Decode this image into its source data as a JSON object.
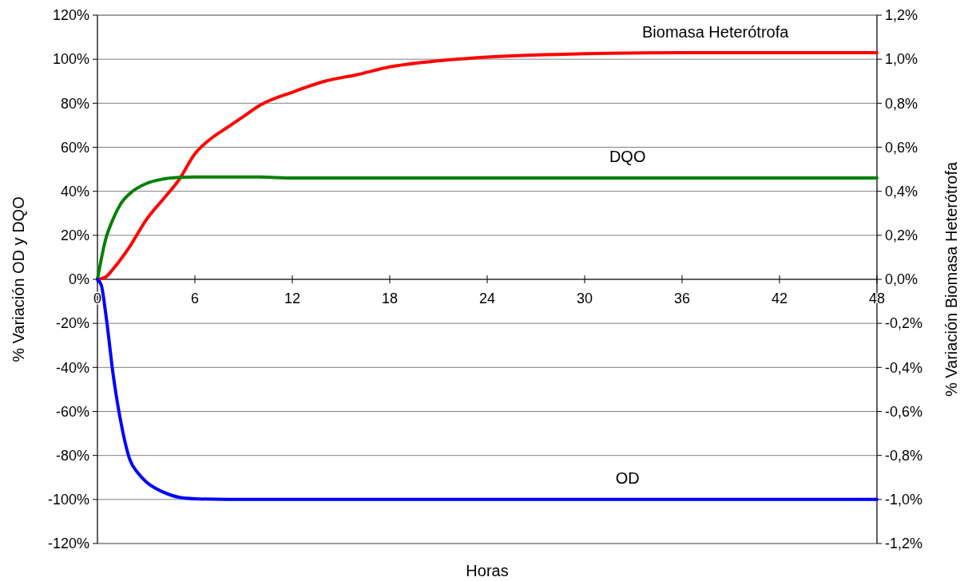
{
  "chart_data": {
    "type": "line",
    "xlabel": "Horas",
    "ylabel": "% Variación OD y DQO",
    "y2label": "% Variación Biomasa Heterótrofa",
    "xlim": [
      0,
      48
    ],
    "xticks": [
      0,
      6,
      12,
      18,
      24,
      30,
      36,
      42,
      48
    ],
    "ylim": [
      -120,
      120
    ],
    "yticks": [
      {
        "value": -120,
        "label": "-120%"
      },
      {
        "value": -100,
        "label": "-100%"
      },
      {
        "value": -80,
        "label": "-80%"
      },
      {
        "value": -60,
        "label": "-60%"
      },
      {
        "value": -40,
        "label": "-40%"
      },
      {
        "value": -20,
        "label": "-20%"
      },
      {
        "value": 0,
        "label": "0%"
      },
      {
        "value": 20,
        "label": "20%"
      },
      {
        "value": 40,
        "label": "40%"
      },
      {
        "value": 60,
        "label": "60%"
      },
      {
        "value": 80,
        "label": "80%"
      },
      {
        "value": 100,
        "label": "100%"
      },
      {
        "value": 120,
        "label": "120%"
      }
    ],
    "y2lim": [
      -1.2,
      1.2
    ],
    "y2ticks": [
      {
        "value": -1.2,
        "label": "-1,2%"
      },
      {
        "value": -1.0,
        "label": "-1,0%"
      },
      {
        "value": -0.8,
        "label": "-0,8%"
      },
      {
        "value": -0.6,
        "label": "-0,6%"
      },
      {
        "value": -0.4,
        "label": "-0,4%"
      },
      {
        "value": -0.2,
        "label": "-0,2%"
      },
      {
        "value": 0,
        "label": "0,0%"
      },
      {
        "value": 0.2,
        "label": "0,2%"
      },
      {
        "value": 0.4,
        "label": "0,4%"
      },
      {
        "value": 0.6,
        "label": "0,6%"
      },
      {
        "value": 0.8,
        "label": "0,8%"
      },
      {
        "value": 1.0,
        "label": "1,0%"
      },
      {
        "value": 1.2,
        "label": "1,2%"
      }
    ],
    "grid": "y",
    "marker": "none",
    "line_style": "solid",
    "series": [
      {
        "name": "Biomasa Heterótrofa",
        "color": "#ff0000",
        "axis": "y2",
        "x": [
          0,
          0.5,
          1,
          2,
          3,
          4,
          5,
          6,
          7,
          8,
          9,
          10,
          12,
          14,
          16,
          18,
          20,
          24,
          30,
          36,
          48
        ],
        "values": [
          0,
          0.01,
          0.05,
          0.15,
          0.27,
          0.36,
          0.45,
          0.57,
          0.64,
          0.69,
          0.74,
          0.79,
          0.85,
          0.9,
          0.93,
          0.965,
          0.985,
          1.01,
          1.025,
          1.03,
          1.03
        ]
      },
      {
        "name": "DQO",
        "color": "#008000",
        "x": [
          0,
          0.5,
          1,
          1.5,
          2,
          3,
          4,
          5,
          6,
          10,
          12,
          48
        ],
        "values": [
          0,
          18,
          28,
          35,
          39,
          43.5,
          45.5,
          46.3,
          46.5,
          46.5,
          46,
          46
        ]
      },
      {
        "name": "OD",
        "color": "#0000ff",
        "x": [
          0,
          0.25,
          0.5,
          1,
          1.5,
          2,
          2.5,
          3,
          4,
          5,
          6,
          8,
          48
        ],
        "values": [
          0,
          -3,
          -15,
          -45,
          -67,
          -82,
          -88,
          -92,
          -96.5,
          -99,
          -99.7,
          -100,
          -100
        ]
      }
    ]
  }
}
